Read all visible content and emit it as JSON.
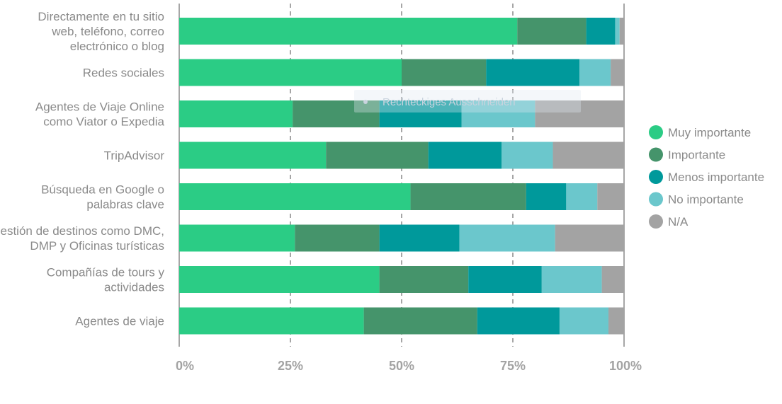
{
  "chart_data": {
    "type": "bar",
    "orientation": "horizontal",
    "stacked": true,
    "percent": true,
    "categories": [
      [
        "Directamente en tu sitio",
        "web, teléfono, correo",
        "electrónico o blog"
      ],
      [
        "Redes sociales"
      ],
      [
        "Agentes de Viaje Online",
        "como Viator o Expedia"
      ],
      [
        "TripAdvisor"
      ],
      [
        "Búsqueda en Google o",
        "palabras clave"
      ],
      [
        "Gestión de destinos como DMC,",
        "DMP y Oficinas turísticas"
      ],
      [
        "Compañías de tours y",
        "actividades"
      ],
      [
        "Agentes de viaje"
      ]
    ],
    "series": [
      {
        "name": "Muy importante",
        "color": "#2bcc85",
        "values": [
          76,
          50,
          25.5,
          33,
          52,
          26,
          45,
          41.5
        ]
      },
      {
        "name": "Importante",
        "color": "#45946b",
        "values": [
          15.5,
          19,
          19.5,
          23,
          26,
          19,
          20,
          25.5
        ]
      },
      {
        "name": "Menos importante",
        "color": "#00999b",
        "values": [
          6.5,
          21,
          18.5,
          16.5,
          9,
          18,
          16.5,
          18.5
        ]
      },
      {
        "name": "No importante",
        "color": "#6bc7cc",
        "values": [
          1,
          7,
          16.5,
          11.5,
          7,
          21.5,
          13.5,
          11
        ]
      },
      {
        "name": "N/A",
        "color": "#a3a3a3",
        "values": [
          1,
          3,
          20,
          16,
          6,
          15.5,
          5,
          3.5
        ]
      }
    ],
    "x_ticks": [
      "0%",
      "25%",
      "50%",
      "75%",
      "100%"
    ],
    "xlim": [
      0,
      100
    ],
    "grid": true,
    "legend_position": "right"
  },
  "overlay_text": "Rechteckiges Ausschneiden"
}
